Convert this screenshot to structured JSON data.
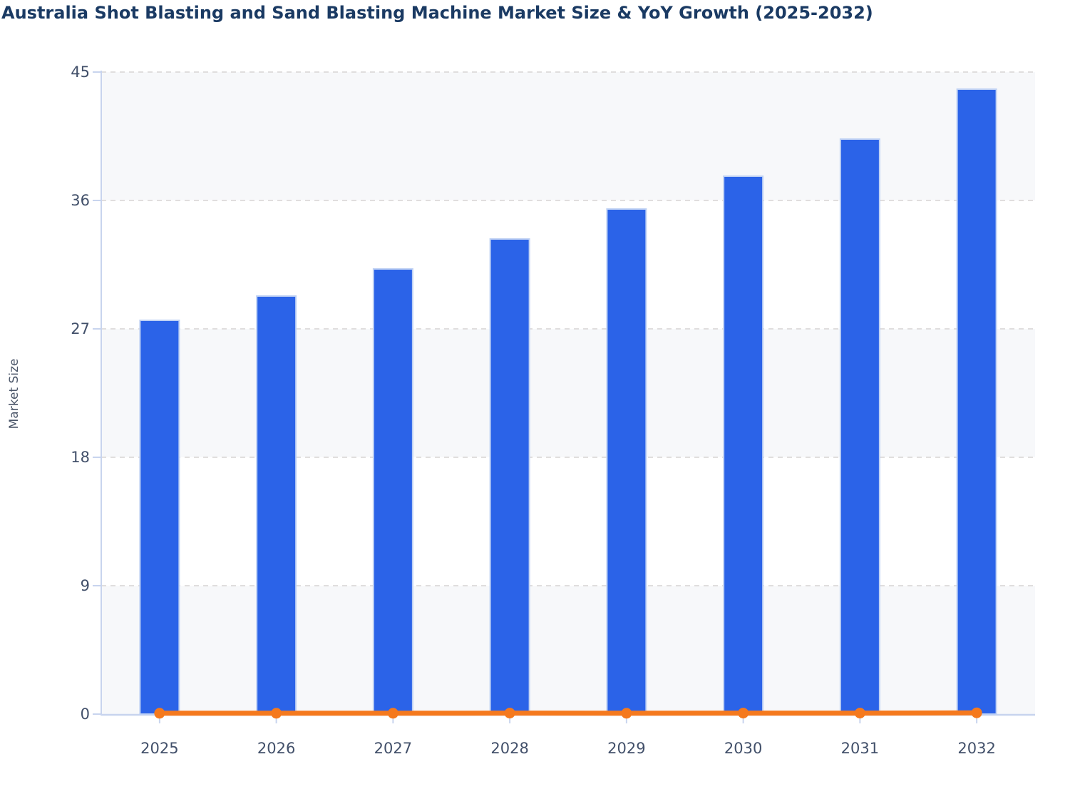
{
  "chart_data": {
    "type": "bar",
    "title": "Australia Shot Blasting and Sand Blasting Machine Market Size & YoY Growth (2025-2032)",
    "xlabel": "",
    "ylabel": "Market Size",
    "categories": [
      "2025",
      "2026",
      "2027",
      "2028",
      "2029",
      "2030",
      "2031",
      "2032"
    ],
    "series": [
      {
        "name": "Market Size",
        "type": "bar",
        "values": [
          27.6,
          29.3,
          31.2,
          33.3,
          35.4,
          37.7,
          40.3,
          43.8
        ]
      },
      {
        "name": "YoY Growth",
        "type": "line",
        "values": [
          0.06,
          0.06,
          0.06,
          0.07,
          0.06,
          0.07,
          0.07,
          0.09
        ],
        "note": "Plotted on the same 0-45 axis, so the line renders flat at ~0 along the baseline with a round marker at each year"
      }
    ],
    "ylim": [
      0,
      45
    ],
    "yticks": [
      0,
      9,
      18,
      27,
      36,
      45
    ],
    "grid": "horizontal dashed",
    "legend": "none",
    "band_shading": "alternating horizontal bands shaded between ticks 0-9, 18-27, 36-45",
    "colors": {
      "bar": "#2b63e8",
      "bar_border": "#bfd1f4",
      "line": "#f5791d",
      "grid": "#e0dede",
      "axis": "#c8d4ee",
      "band": "#f7f8fa",
      "tick_text": "#42506a",
      "axis_title_text": "#4a5568",
      "title_text": "#1a3a63"
    }
  }
}
